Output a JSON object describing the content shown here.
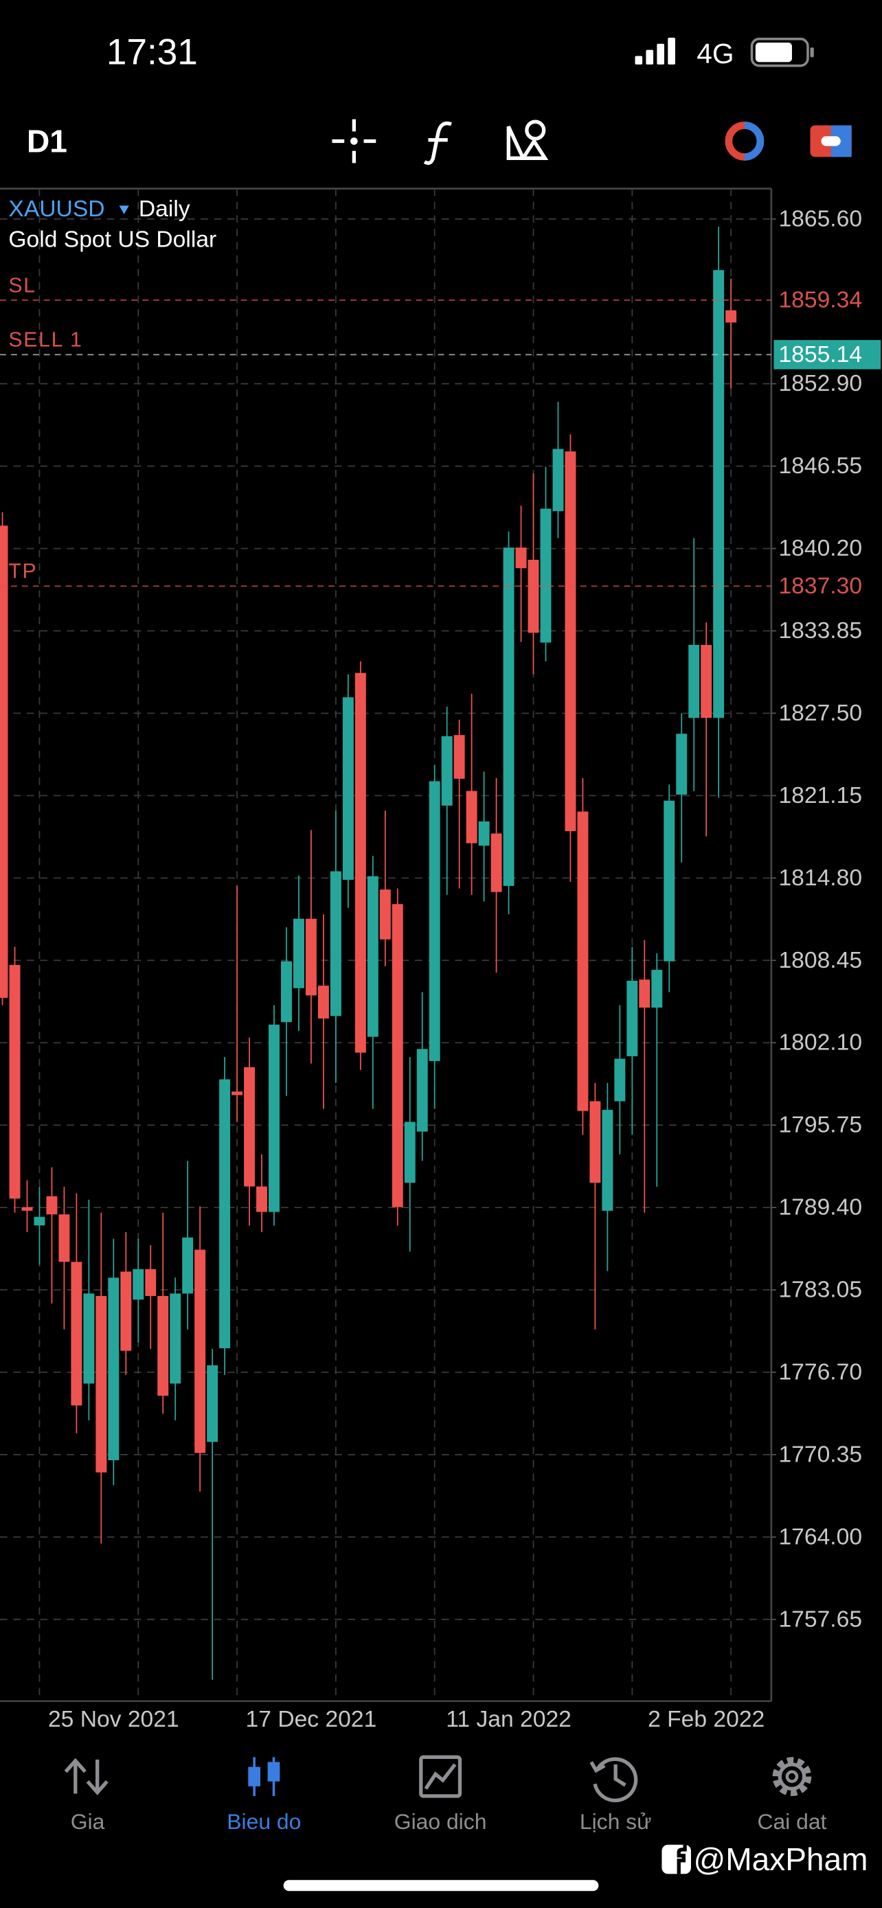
{
  "status_bar": {
    "time": "17:31",
    "network": "4G"
  },
  "toolbar": {
    "timeframe": "D1"
  },
  "chart_data": {
    "type": "candlestick",
    "symbol": "XAUUSD",
    "period": "Daily",
    "description": "Gold Spot US Dollar",
    "categories": [
      null,
      null,
      null,
      null,
      null,
      null,
      null,
      null,
      null,
      "25 Nov 2021",
      null,
      null,
      null,
      null,
      null,
      null,
      null,
      null,
      null,
      null,
      null,
      null,
      null,
      null,
      null,
      "17 Dec 2021",
      null,
      null,
      null,
      null,
      null,
      null,
      null,
      null,
      null,
      null,
      null,
      null,
      null,
      null,
      null,
      "11 Jan 2022",
      null,
      null,
      null,
      null,
      null,
      null,
      null,
      null,
      null,
      null,
      null,
      null,
      null,
      null,
      null,
      "2 Feb 2022",
      null,
      null
    ],
    "open": [
      1841.96,
      1808.1,
      1789.43,
      1788.02,
      1790.27,
      1788.87,
      1785.21,
      1775.83,
      1782.58,
      1769.92,
      1784.46,
      1782.3,
      1784.65,
      1782.58,
      1775.83,
      1782.77,
      1786.15,
      1771.33,
      1778.55,
      1798.34,
      1800.22,
      1791.02,
      1789.06,
      1803.69,
      1806.31,
      1811.66,
      1806.5,
      1804.16,
      1814.66,
      1830.61,
      1802.56,
      1813.91,
      1812.79,
      1791.31,
      1795.25,
      1800.69,
      1820.38,
      1825.82,
      1821.51,
      1817.29,
      1818.23,
      1814.19,
      1840.27,
      1839.33,
      1832.95,
      1843.08,
      1847.68,
      1819.92,
      1797.59,
      1789.15,
      1797.59,
      1801.06,
      1806.97,
      1804.81,
      1808.38,
      1821.23,
      1827.14,
      1832.77,
      1827.14,
      1858.56
    ],
    "high": [
      1843.0,
      1809.5,
      1791.5,
      1791.0,
      1792.5,
      1791.0,
      1790.5,
      1790.0,
      1789.0,
      1787.0,
      1787.5,
      1787.0,
      1786.5,
      1789.0,
      1784.0,
      1793.0,
      1789.5,
      1778.5,
      1801.0,
      1814.2,
      1802.5,
      1793.5,
      1805.0,
      1811.0,
      1815.0,
      1818.5,
      1812.0,
      1820.0,
      1830.5,
      1831.5,
      1816.5,
      1820.0,
      1814.0,
      1801.0,
      1806.0,
      1823.5,
      1828.0,
      1827.0,
      1829.0,
      1823.0,
      1822.5,
      1841.5,
      1843.5,
      1846.0,
      1846.5,
      1851.5,
      1849.0,
      1822.5,
      1799.0,
      1799.0,
      1805.0,
      1809.5,
      1810.0,
      1809.0,
      1822.0,
      1827.5,
      1841.0,
      1834.5,
      1865.0,
      1861.0
    ],
    "low": [
      1805.0,
      1789.0,
      1787.5,
      1785.0,
      1782.0,
      1780.0,
      1772.0,
      1773.0,
      1763.5,
      1768.0,
      1776.5,
      1779.0,
      1778.5,
      1773.5,
      1773.0,
      1780.0,
      1767.5,
      1753.0,
      1776.5,
      1796.0,
      1788.0,
      1787.5,
      1788.0,
      1798.0,
      1803.0,
      1800.5,
      1797.0,
      1799.0,
      1812.5,
      1800.0,
      1797.0,
      1808.0,
      1788.0,
      1786.0,
      1793.0,
      1797.0,
      1813.5,
      1814.0,
      1813.5,
      1813.0,
      1807.5,
      1812.0,
      1833.0,
      1830.5,
      1831.5,
      1841.0,
      1814.5,
      1795.0,
      1780.0,
      1784.5,
      1793.5,
      1795.0,
      1789.0,
      1791.0,
      1806.0,
      1816.0,
      1821.5,
      1818.0,
      1821.0,
      1852.5
    ],
    "close": [
      1805.56,
      1790.09,
      1789.15,
      1788.68,
      1788.87,
      1785.21,
      1774.14,
      1782.77,
      1768.98,
      1783.99,
      1778.36,
      1784.65,
      1782.58,
      1774.89,
      1782.77,
      1787.09,
      1770.48,
      1777.24,
      1799.28,
      1798.06,
      1791.02,
      1789.06,
      1803.5,
      1808.38,
      1811.66,
      1805.75,
      1803.97,
      1815.32,
      1828.73,
      1801.34,
      1814.94,
      1810.07,
      1789.43,
      1796.0,
      1801.62,
      1822.26,
      1825.73,
      1822.45,
      1817.48,
      1819.16,
      1813.72,
      1840.27,
      1838.68,
      1833.7,
      1843.27,
      1847.87,
      1818.41,
      1796.84,
      1791.31,
      1796.93,
      1800.87,
      1806.88,
      1804.81,
      1807.72,
      1820.76,
      1825.92,
      1832.77,
      1827.14,
      1861.66,
      1857.62
    ],
    "up_color": "#26a69a",
    "down_color": "#ef5350",
    "ylim": [
      1751.35,
      1867.94
    ],
    "yticks": [
      {
        "value": 1865.6,
        "label": "1865.60"
      },
      {
        "value": 1852.9,
        "label": "1852.90"
      },
      1846.55,
      {
        "value": 1840.2,
        "label": "1840.20"
      },
      1833.85,
      {
        "value": 1827.5,
        "label": "1827.50"
      },
      1821.15,
      {
        "value": 1814.8,
        "label": "1814.80"
      },
      1808.45,
      {
        "value": 1802.1,
        "label": "1802.10"
      },
      1795.75,
      {
        "value": 1789.4,
        "label": "1789.40"
      },
      1783.05,
      {
        "value": 1776.7,
        "label": "1776.70"
      },
      1770.35,
      {
        "value": 1764,
        "label": "1764.00"
      },
      1757.65
    ],
    "grid": true,
    "levels": [
      {
        "name": "SL",
        "value": 1859.34,
        "color": "#d9534f"
      },
      {
        "name": "SELL 1",
        "value": 1855.14,
        "color": "#c8c8c8",
        "box_color": "#26a69a"
      },
      {
        "name": "TP",
        "value": 1837.3,
        "value_label": "1837.30",
        "color": "#d9534f"
      }
    ]
  },
  "nav": {
    "items": [
      "Gia",
      "Bieu do",
      "Giao dich",
      "Lịch sử",
      "Cai dat"
    ],
    "active": 1
  },
  "watermark": "@MaxPham"
}
